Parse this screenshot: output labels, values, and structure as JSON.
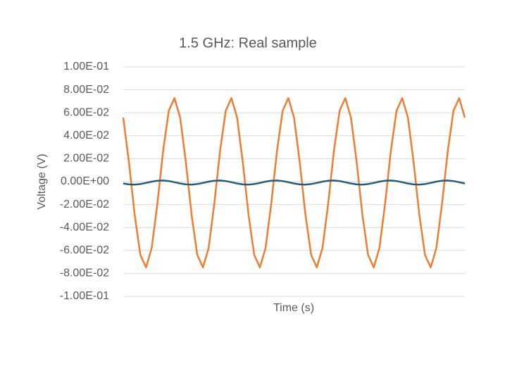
{
  "chart_data": {
    "type": "line",
    "title": "1.5 GHz: Real sample",
    "x_label": "Time (s)",
    "y_label": "Voltage (V)",
    "categories": [
      null,
      null,
      null,
      null,
      null,
      null,
      null,
      null,
      null,
      null,
      null,
      null,
      null,
      null,
      null,
      null,
      null,
      null,
      null,
      null,
      null,
      null,
      null,
      null,
      null,
      null,
      null,
      null,
      null,
      null,
      null,
      null,
      null,
      null,
      null,
      null,
      null,
      null,
      null,
      null,
      null,
      null,
      null,
      null,
      null,
      null,
      null,
      null,
      null,
      null,
      null,
      null,
      null,
      null,
      null,
      null,
      null,
      null,
      null,
      null,
      null
    ],
    "series": [
      {
        "color": "#ed7d31",
        "values": [
          0.0557,
          0.0169,
          -0.0287,
          -0.0638,
          -0.0748,
          -0.0577,
          -0.0189,
          0.0267,
          0.0618,
          0.0728,
          0.0557,
          0.0169,
          -0.0287,
          -0.0638,
          -0.0748,
          -0.0577,
          -0.0189,
          0.0267,
          0.0618,
          0.0728,
          0.0557,
          0.0169,
          -0.0287,
          -0.0638,
          -0.0748,
          -0.0577,
          -0.0189,
          0.0267,
          0.0618,
          0.0728,
          0.0557,
          0.0169,
          -0.0287,
          -0.0638,
          -0.0748,
          -0.0577,
          -0.0189,
          0.0267,
          0.0618,
          0.0728,
          0.0557,
          0.0169,
          -0.0287,
          -0.0638,
          -0.0748,
          -0.0577,
          -0.0189,
          0.0267,
          0.0618,
          0.0728,
          0.0557,
          0.0169,
          -0.0287,
          -0.0638,
          -0.0748,
          -0.0577,
          -0.0189,
          0.0267,
          0.0618,
          0.0728,
          0.0557
        ]
      },
      {
        "color": "#1f5f7d",
        "values": [
          -0.0016,
          -0.0024,
          -0.0026,
          -0.0021,
          -0.0011,
          0.0,
          0.0008,
          0.001,
          0.0005,
          -0.0005,
          -0.0016,
          -0.0024,
          -0.0026,
          -0.0021,
          -0.0011,
          0.0,
          0.0008,
          0.001,
          0.0005,
          -0.0005,
          -0.0016,
          -0.0024,
          -0.0026,
          -0.0021,
          -0.0011,
          0.0,
          0.0008,
          0.001,
          0.0005,
          -0.0005,
          -0.0016,
          -0.0024,
          -0.0026,
          -0.0021,
          -0.0011,
          0.0,
          0.0008,
          0.001,
          0.0005,
          -0.0005,
          -0.0016,
          -0.0024,
          -0.0026,
          -0.0021,
          -0.0011,
          0.0,
          0.0008,
          0.001,
          0.0005,
          -0.0005,
          -0.0016,
          -0.0024,
          -0.0026,
          -0.0021,
          -0.0011,
          0.0,
          0.0008,
          0.001,
          0.0005,
          -0.0005,
          -0.0016
        ]
      }
    ],
    "ylim": [
      -0.1,
      0.1
    ],
    "yticks": [
      {
        "value": -0.1,
        "label": "-1.00E-01"
      },
      {
        "value": -0.08,
        "label": "-8.00E-02"
      },
      {
        "value": -0.06,
        "label": "-6.00E-02"
      },
      {
        "value": -0.04,
        "label": "-4.00E-02"
      },
      {
        "value": -0.02,
        "label": "-2.00E-02"
      },
      {
        "value": 0,
        "label": "0.00E+00"
      },
      {
        "value": 0.02,
        "label": "2.00E-02"
      },
      {
        "value": 0.04,
        "label": "4.00E-02"
      },
      {
        "value": 0.06,
        "label": "6.00E-02"
      },
      {
        "value": 0.08,
        "label": "8.00E-02"
      },
      {
        "value": 0.1,
        "label": "1.00E-01"
      }
    ],
    "grid": true
  }
}
